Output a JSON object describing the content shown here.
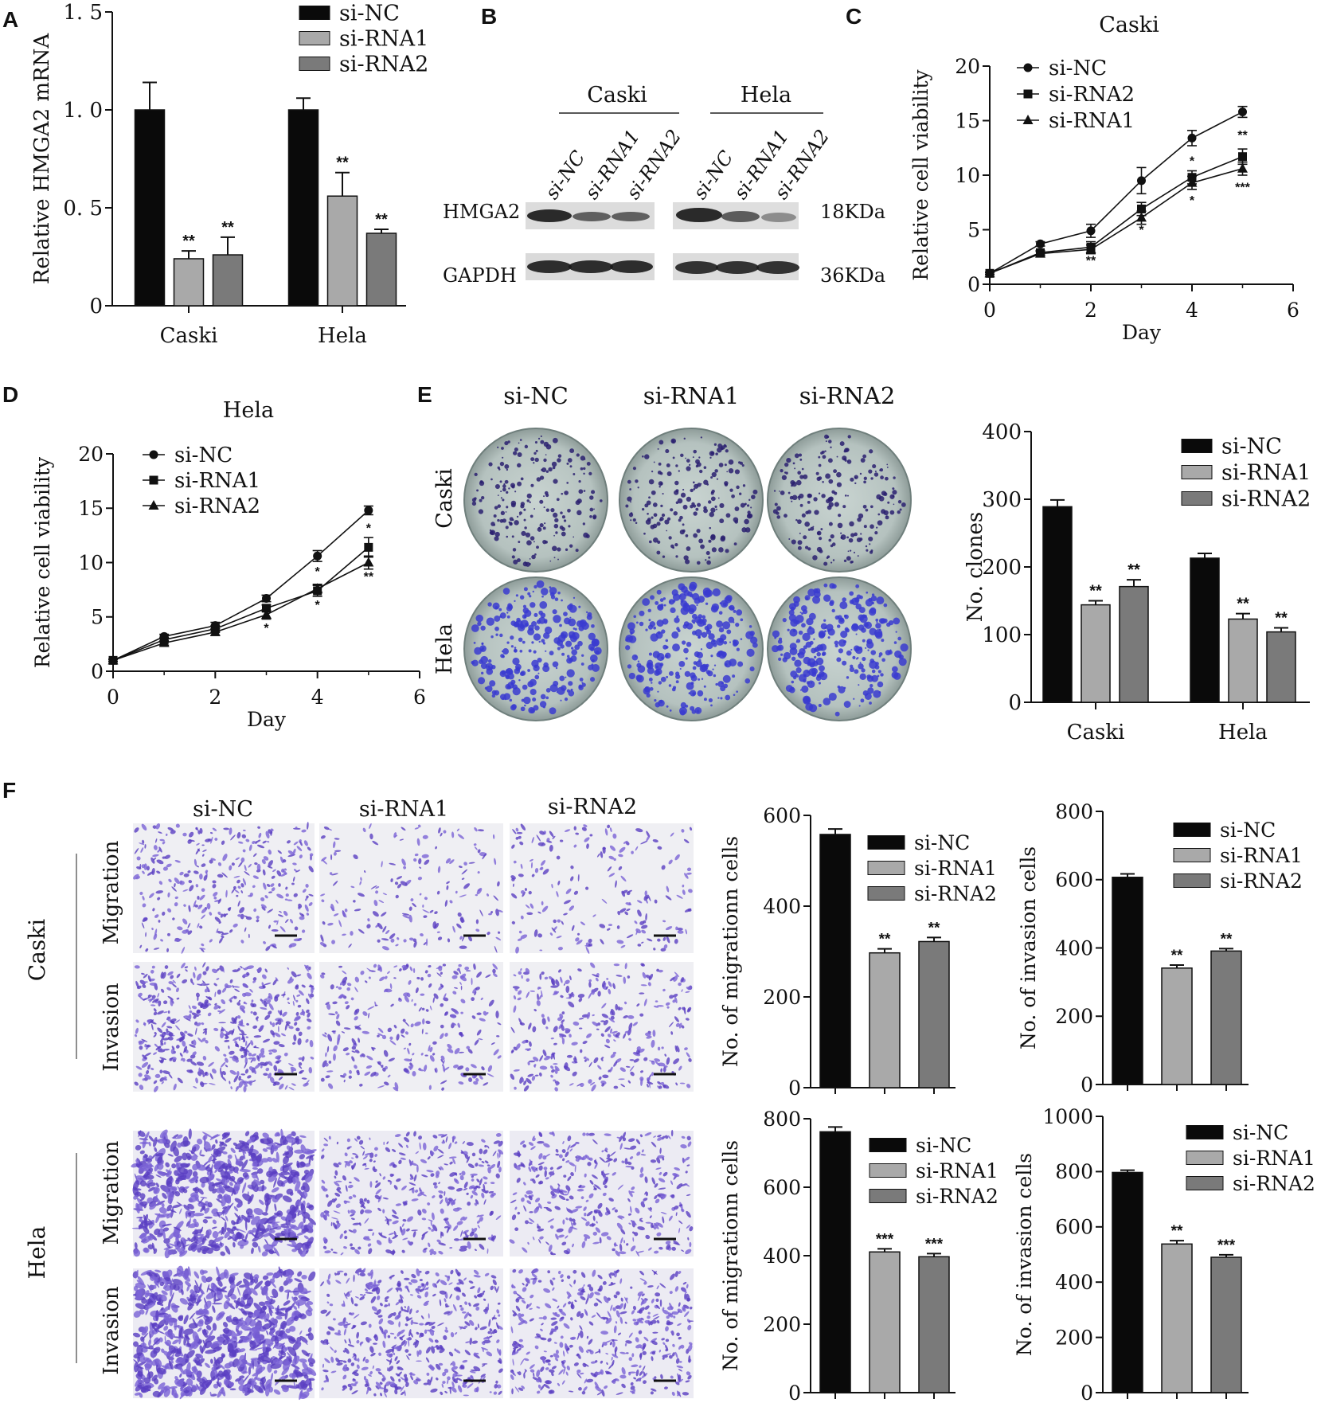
{
  "panels": {
    "A": {
      "label": "A"
    },
    "B": {
      "label": "B",
      "group_labels": [
        "Caski",
        "Hela"
      ],
      "lane_labels": [
        "si-NC",
        "si-RNA1",
        "si-RNA2",
        "si-NC",
        "si-RNA1",
        "si-RNA2"
      ],
      "row_labels": [
        "HMGA2",
        "GAPDH"
      ],
      "size_labels": [
        "18KDa",
        "36KDa"
      ]
    },
    "C": {
      "label": "C"
    },
    "D": {
      "label": "D"
    },
    "E": {
      "label": "E",
      "col_labels": [
        "si-NC",
        "si-RNA1",
        "si-RNA2"
      ],
      "row_labels": [
        "Caski",
        "Hela"
      ]
    },
    "F": {
      "label": "F",
      "col_labels": [
        "si-NC",
        "si-RNA1",
        "si-RNA2"
      ],
      "cell_labels": [
        "Caski",
        "Hela"
      ],
      "assay_labels": [
        "Migration",
        "Invasion",
        "Migration",
        "Invasion"
      ]
    }
  },
  "chart_data": [
    {
      "id": "A",
      "type": "bar",
      "title": "",
      "xlabel": "",
      "ylabel": "Relative HMGA2 mRNA",
      "categories": [
        "Caski",
        "Hela"
      ],
      "ylim": [
        0,
        1.5
      ],
      "yticks": [
        "0",
        "0. 5",
        "1. 0",
        "1. 5"
      ],
      "colors": [
        "#0a0a0a",
        "#a9a9a9",
        "#7a7a7a"
      ],
      "series": [
        {
          "name": "si-NC",
          "values": [
            1.0,
            1.0
          ],
          "errors": [
            0.14,
            0.06
          ],
          "sig": [
            "",
            ""
          ]
        },
        {
          "name": "si-RNA1",
          "values": [
            0.24,
            0.56
          ],
          "errors": [
            0.04,
            0.12
          ],
          "sig": [
            "**",
            "**"
          ]
        },
        {
          "name": "si-RNA2",
          "values": [
            0.26,
            0.37
          ],
          "errors": [
            0.09,
            0.02
          ],
          "sig": [
            "**",
            "**"
          ]
        }
      ]
    },
    {
      "id": "C",
      "type": "line",
      "title": "Caski",
      "xlabel": "Day",
      "ylabel": "Relative cell viability",
      "x": [
        0,
        1,
        2,
        3,
        4,
        5
      ],
      "xlim": [
        0,
        6
      ],
      "xticks": [
        "0",
        "2",
        "4",
        "6"
      ],
      "ylim": [
        0,
        20
      ],
      "yticks": [
        "0",
        "5",
        "10",
        "15",
        "20"
      ],
      "series": [
        {
          "name": "si-NC",
          "marker": "circle",
          "values": [
            1.0,
            3.7,
            4.9,
            9.5,
            13.4,
            15.8
          ],
          "errors": [
            0.1,
            0.2,
            0.6,
            1.2,
            0.7,
            0.5
          ]
        },
        {
          "name": "si-RNA2",
          "marker": "square",
          "values": [
            1.0,
            2.9,
            3.4,
            6.9,
            9.8,
            11.7
          ],
          "errors": [
            0.1,
            0.2,
            0.5,
            0.6,
            0.6,
            0.7
          ]
        },
        {
          "name": "si-RNA1",
          "marker": "triangle",
          "values": [
            1.0,
            2.8,
            3.2,
            6.1,
            9.3,
            10.6
          ],
          "errors": [
            0.1,
            0.2,
            0.4,
            0.6,
            0.6,
            0.6
          ]
        }
      ],
      "annotations": [
        {
          "x": 2,
          "y": 1.8,
          "text": "**"
        },
        {
          "x": 3,
          "y": 4.6,
          "text": "*"
        },
        {
          "x": 4,
          "y": 10.9,
          "text": "*"
        },
        {
          "x": 4,
          "y": 7.3,
          "text": "*"
        },
        {
          "x": 5,
          "y": 13.3,
          "text": "**"
        },
        {
          "x": 5,
          "y": 8.5,
          "text": "***"
        }
      ]
    },
    {
      "id": "D",
      "type": "line",
      "title": "Hela",
      "xlabel": "Day",
      "ylabel": "Relative cell viability",
      "x": [
        0,
        1,
        2,
        3,
        4,
        5
      ],
      "xlim": [
        0,
        6
      ],
      "xticks": [
        "0",
        "2",
        "4",
        "6"
      ],
      "ylim": [
        0,
        20
      ],
      "yticks": [
        "0",
        "5",
        "10",
        "15",
        "20"
      ],
      "series": [
        {
          "name": "si-NC",
          "marker": "circle",
          "values": [
            1.0,
            3.2,
            4.2,
            6.7,
            10.6,
            14.8
          ],
          "errors": [
            0.1,
            0.2,
            0.3,
            0.3,
            0.5,
            0.4
          ]
        },
        {
          "name": "si-RNA1",
          "marker": "square",
          "values": [
            1.0,
            2.9,
            3.9,
            5.8,
            7.4,
            11.4
          ],
          "errors": [
            0.1,
            0.2,
            0.3,
            0.3,
            0.5,
            0.9
          ]
        },
        {
          "name": "si-RNA2",
          "marker": "triangle",
          "values": [
            1.0,
            2.6,
            3.6,
            5.2,
            7.6,
            10.0
          ],
          "errors": [
            0.1,
            0.2,
            0.3,
            0.4,
            0.4,
            0.6
          ]
        }
      ],
      "annotations": [
        {
          "x": 3,
          "y": 3.6,
          "text": "*"
        },
        {
          "x": 4,
          "y": 8.8,
          "text": "*"
        },
        {
          "x": 4,
          "y": 5.7,
          "text": "*"
        },
        {
          "x": 5,
          "y": 12.8,
          "text": "*"
        },
        {
          "x": 5,
          "y": 8.3,
          "text": "**"
        }
      ]
    },
    {
      "id": "E",
      "type": "bar",
      "title": "",
      "xlabel": "",
      "ylabel": "No. clones",
      "categories": [
        "Caski",
        "Hela"
      ],
      "ylim": [
        0,
        400
      ],
      "yticks": [
        "0",
        "100",
        "200",
        "300",
        "400"
      ],
      "colors": [
        "#0a0a0a",
        "#a9a9a9",
        "#7a7a7a"
      ],
      "series": [
        {
          "name": "si-NC",
          "values": [
            289,
            213
          ],
          "errors": [
            10,
            7
          ],
          "sig": [
            "",
            ""
          ]
        },
        {
          "name": "si-RNA1",
          "values": [
            144,
            123
          ],
          "errors": [
            6,
            8
          ],
          "sig": [
            "**",
            "**"
          ]
        },
        {
          "name": "si-RNA2",
          "values": [
            171,
            104
          ],
          "errors": [
            10,
            6
          ],
          "sig": [
            "**",
            "**"
          ]
        }
      ]
    },
    {
      "id": "F-Caski-migration",
      "type": "bar",
      "title": "",
      "xlabel": "",
      "ylabel": "No. of migrationn cells",
      "categories": [
        "si-NC",
        "si-RNA1",
        "si-RNA2"
      ],
      "ylim": [
        0,
        600
      ],
      "yticks": [
        "0",
        "200",
        "400",
        "600"
      ],
      "colors": [
        "#0a0a0a",
        "#a9a9a9",
        "#7a7a7a"
      ],
      "legend": [
        "si-NC",
        "si-RNA1",
        "si-RNA2"
      ],
      "values": [
        558,
        297,
        322
      ],
      "errors": [
        12,
        9,
        9
      ],
      "sig": [
        "",
        "**",
        "**"
      ]
    },
    {
      "id": "F-Caski-invasion",
      "type": "bar",
      "title": "",
      "xlabel": "",
      "ylabel": "No. of invasion cells",
      "categories": [
        "si-NC",
        "si-RNA1",
        "si-RNA2"
      ],
      "ylim": [
        0,
        800
      ],
      "yticks": [
        "0",
        "200",
        "400",
        "600",
        "800"
      ],
      "colors": [
        "#0a0a0a",
        "#a9a9a9",
        "#7a7a7a"
      ],
      "legend": [
        "si-NC",
        "si-RNA1",
        "si-RNA2"
      ],
      "values": [
        607,
        341,
        391
      ],
      "errors": [
        10,
        9,
        7
      ],
      "sig": [
        "",
        "**",
        "**"
      ]
    },
    {
      "id": "F-Hela-migration",
      "type": "bar",
      "title": "",
      "xlabel": "",
      "ylabel": "No. of migrationn cells",
      "categories": [
        "si-NC",
        "si-RNA1",
        "si-RNA2"
      ],
      "ylim": [
        0,
        800
      ],
      "yticks": [
        "0",
        "200",
        "400",
        "600",
        "800"
      ],
      "colors": [
        "#0a0a0a",
        "#a9a9a9",
        "#7a7a7a"
      ],
      "legend": [
        "si-NC",
        "si-RNA1",
        "si-RNA2"
      ],
      "values": [
        762,
        411,
        397
      ],
      "errors": [
        14,
        9,
        9
      ],
      "sig": [
        "",
        "***",
        "***"
      ]
    },
    {
      "id": "F-Hela-invasion",
      "type": "bar",
      "title": "",
      "xlabel": "",
      "ylabel": "No. of invasion cells",
      "categories": [
        "si-NC",
        "si-RNA1",
        "si-RNA2"
      ],
      "ylim": [
        0,
        1000
      ],
      "yticks": [
        "0",
        "200",
        "400",
        "600",
        "800",
        "1000"
      ],
      "colors": [
        "#0a0a0a",
        "#a9a9a9",
        "#7a7a7a"
      ],
      "legend": [
        "si-NC",
        "si-RNA1",
        "si-RNA2"
      ],
      "values": [
        797,
        538,
        490
      ],
      "errors": [
        8,
        12,
        9
      ],
      "sig": [
        "",
        "**",
        "***"
      ]
    }
  ]
}
